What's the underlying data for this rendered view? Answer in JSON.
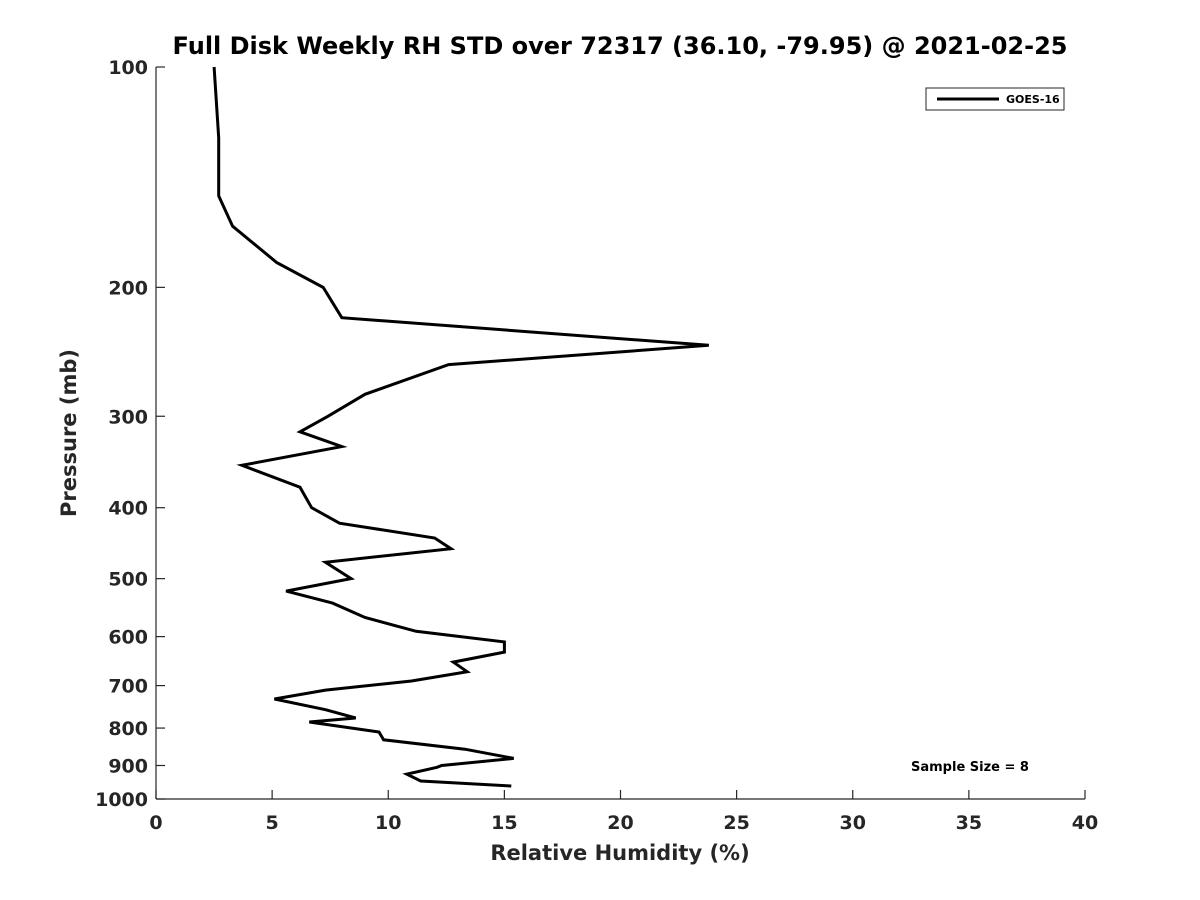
{
  "chart_data": {
    "type": "line",
    "title": "Full Disk Weekly RH STD over 72317 (36.10, -79.95) @ 2021-02-25",
    "xlabel": "Relative Humidity (%)",
    "ylabel": "Pressure (mb)",
    "xlim": [
      0,
      40
    ],
    "ylim": [
      100,
      1000
    ],
    "y_scale": "log",
    "y_reversed": true,
    "xticks": [
      0,
      5,
      10,
      15,
      20,
      25,
      30,
      35,
      40
    ],
    "yticks": [
      100,
      200,
      300,
      400,
      500,
      600,
      700,
      800,
      900,
      1000
    ],
    "grid": false,
    "legend_position": "top-right",
    "series": [
      {
        "name": "GOES-16",
        "color": "#000000",
        "points": [
          [
            2.5,
            100
          ],
          [
            2.7,
            125
          ],
          [
            2.7,
            150
          ],
          [
            3.3,
            165
          ],
          [
            5.2,
            185
          ],
          [
            7.2,
            200
          ],
          [
            8.0,
            220
          ],
          [
            23.8,
            240
          ],
          [
            12.6,
            255
          ],
          [
            9.0,
            280
          ],
          [
            7.4,
            300
          ],
          [
            6.2,
            315
          ],
          [
            8.0,
            330
          ],
          [
            3.7,
            350
          ],
          [
            6.2,
            375
          ],
          [
            6.7,
            400
          ],
          [
            7.9,
            420
          ],
          [
            12.0,
            440
          ],
          [
            12.7,
            455
          ],
          [
            7.3,
            475
          ],
          [
            8.4,
            500
          ],
          [
            5.6,
            520
          ],
          [
            7.6,
            540
          ],
          [
            9.0,
            565
          ],
          [
            11.2,
            590
          ],
          [
            15.0,
            610
          ],
          [
            15.0,
            630
          ],
          [
            12.8,
            650
          ],
          [
            13.4,
            670
          ],
          [
            11.0,
            690
          ],
          [
            7.3,
            710
          ],
          [
            5.1,
            730
          ],
          [
            7.3,
            755
          ],
          [
            8.6,
            775
          ],
          [
            6.6,
            785
          ],
          [
            9.6,
            810
          ],
          [
            9.8,
            830
          ],
          [
            13.3,
            855
          ],
          [
            15.4,
            880
          ],
          [
            12.3,
            900
          ],
          [
            12.1,
            905
          ],
          [
            10.8,
            925
          ],
          [
            11.4,
            945
          ],
          [
            15.3,
            960
          ]
        ]
      }
    ],
    "annotations": [
      "Sample Size = 8"
    ]
  }
}
